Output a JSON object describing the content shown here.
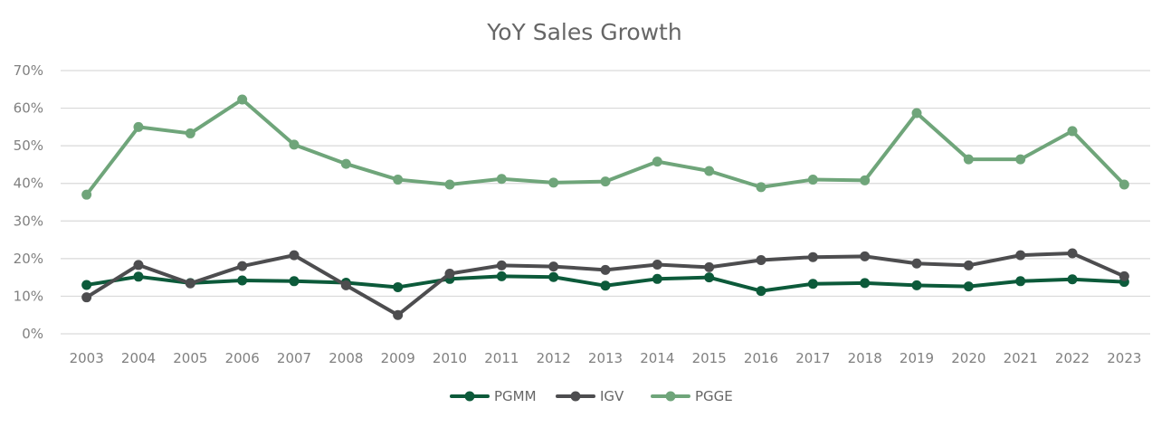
{
  "chart_data": {
    "type": "line",
    "title": "YoY Sales Growth",
    "xlabel": "",
    "ylabel": "",
    "categories": [
      "2003",
      "2004",
      "2005",
      "2006",
      "2007",
      "2008",
      "2009",
      "2010",
      "2011",
      "2012",
      "2013",
      "2014",
      "2015",
      "2016",
      "2017",
      "2018",
      "2019",
      "2020",
      "2021",
      "2022",
      "2023"
    ],
    "ylim": [
      0,
      70
    ],
    "yticks": [
      0,
      10,
      20,
      30,
      40,
      50,
      60,
      70
    ],
    "ytick_labels": [
      "0%",
      "10%",
      "20%",
      "30%",
      "40%",
      "50%",
      "60%",
      "70%"
    ],
    "grid": true,
    "legend_position": "bottom-center",
    "series": [
      {
        "name": "PGMM",
        "color": "#0c5a3a",
        "values": [
          13.0,
          15.2,
          13.5,
          14.2,
          14.0,
          13.6,
          12.4,
          14.6,
          15.3,
          15.1,
          12.8,
          14.6,
          15.0,
          11.4,
          13.3,
          13.5,
          12.9,
          12.6,
          14.0,
          14.5,
          13.8
        ]
      },
      {
        "name": "IGV",
        "color": "#4d4d4f",
        "values": [
          9.7,
          18.3,
          13.4,
          18.0,
          20.9,
          12.9,
          5.0,
          16.0,
          18.2,
          17.9,
          17.0,
          18.4,
          17.7,
          19.6,
          20.4,
          20.6,
          18.7,
          18.2,
          20.9,
          21.4,
          15.3
        ]
      },
      {
        "name": "PGGE",
        "color": "#6fa57a",
        "values": [
          37.0,
          55.0,
          53.3,
          62.3,
          50.3,
          45.2,
          41.0,
          39.7,
          41.2,
          40.2,
          40.5,
          45.8,
          43.3,
          39.0,
          41.0,
          40.8,
          58.7,
          46.4,
          46.4,
          53.9,
          39.7
        ]
      }
    ]
  }
}
